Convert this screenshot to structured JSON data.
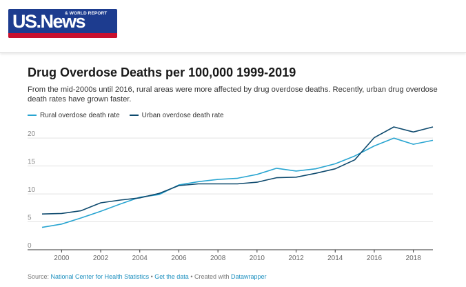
{
  "header": {
    "logo_text": "US.News",
    "logo_subtext": "& WORLD REPORT"
  },
  "chart_data": {
    "type": "line",
    "title": "Drug Overdose Deaths per 100,000 1999-2019",
    "subtitle": "From the mid-2000s until 2016, rural areas were more affected by drug overdose deaths. Recently, urban drug overdose death rates have grown faster.",
    "xlim": [
      1999,
      2019
    ],
    "ylim": [
      0,
      22
    ],
    "x_ticks": [
      2000,
      2002,
      2004,
      2006,
      2008,
      2010,
      2012,
      2014,
      2016,
      2018
    ],
    "y_ticks": [
      0,
      5,
      10,
      15,
      20
    ],
    "grid": true,
    "legend_placement": "top-left",
    "x": [
      1999,
      2000,
      2001,
      2002,
      2003,
      2004,
      2005,
      2006,
      2007,
      2008,
      2009,
      2010,
      2011,
      2012,
      2013,
      2014,
      2015,
      2016,
      2017,
      2018,
      2019
    ],
    "series": [
      {
        "name": "Rural overdose death rate",
        "color": "#29a5d1",
        "values": [
          4.0,
          4.6,
          5.7,
          6.9,
          8.2,
          9.4,
          9.9,
          11.6,
          12.2,
          12.6,
          12.8,
          13.5,
          14.6,
          14.1,
          14.5,
          15.4,
          16.8,
          18.6,
          20.0,
          18.9,
          19.6
        ]
      },
      {
        "name": "Urban overdose death rate",
        "color": "#0e4a6e",
        "values": [
          6.4,
          6.5,
          7.0,
          8.4,
          8.9,
          9.3,
          10.1,
          11.5,
          11.8,
          11.8,
          11.8,
          12.1,
          12.9,
          13.0,
          13.7,
          14.5,
          16.1,
          20.1,
          22.0,
          21.1,
          22.0
        ]
      }
    ]
  },
  "footer": {
    "source_prefix": "Source: ",
    "source_link": "National Center for Health Statistics",
    "separator1": " • ",
    "get_data": "Get the data",
    "separator2": " • Created with ",
    "tool": "Datawrapper"
  }
}
